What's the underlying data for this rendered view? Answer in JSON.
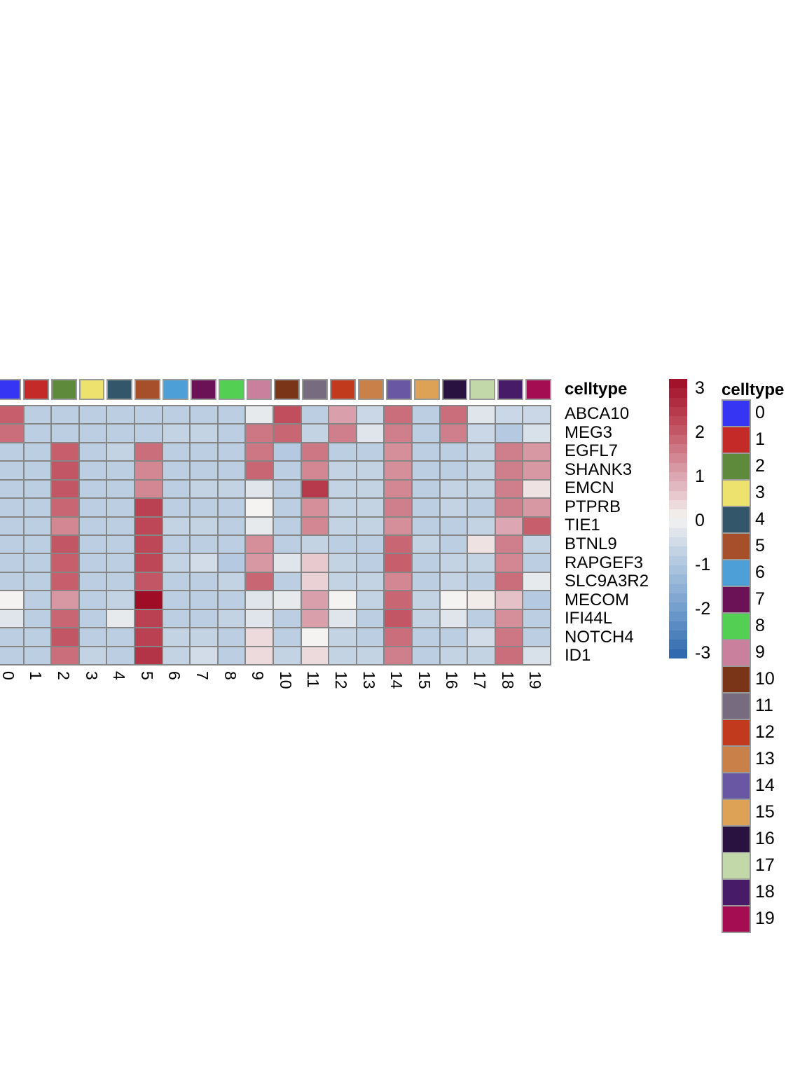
{
  "chart_data": {
    "type": "heatmap",
    "title": "",
    "genes": [
      "ABCA10",
      "MEG3",
      "EGFL7",
      "SHANK3",
      "EMCN",
      "PTPRB",
      "TIE1",
      "BTNL9",
      "RAPGEF3",
      "SLC9A3R2",
      "MECOM",
      "IFI44L",
      "NOTCH4",
      "ID1"
    ],
    "columns": [
      "0",
      "1",
      "2",
      "3",
      "4",
      "5",
      "6",
      "7",
      "8",
      "9",
      "10",
      "11",
      "12",
      "13",
      "14",
      "15",
      "16",
      "17",
      "18",
      "19"
    ],
    "values": [
      [
        1.8,
        -0.8,
        -0.8,
        -0.8,
        -0.8,
        -0.8,
        -0.8,
        -0.8,
        -0.8,
        -0.2,
        2.0,
        -0.8,
        1.0,
        -0.6,
        1.6,
        -0.8,
        1.6,
        -0.3,
        -0.6,
        -0.6
      ],
      [
        1.6,
        -0.8,
        -0.8,
        -0.8,
        -0.8,
        -0.8,
        -0.7,
        -0.7,
        -0.8,
        1.5,
        1.7,
        -0.7,
        1.4,
        -0.3,
        1.4,
        -0.8,
        1.4,
        -0.6,
        -0.9,
        -0.4
      ],
      [
        -0.8,
        -0.8,
        1.8,
        -0.8,
        -0.7,
        1.6,
        -0.8,
        -0.8,
        -0.8,
        1.5,
        -0.9,
        1.5,
        -0.8,
        -0.8,
        1.2,
        -0.8,
        -0.8,
        -0.7,
        1.4,
        1.1
      ],
      [
        -0.8,
        -0.8,
        1.9,
        -0.8,
        -0.8,
        1.3,
        -0.8,
        -0.8,
        -0.8,
        1.7,
        -0.8,
        1.3,
        -0.7,
        -0.7,
        1.2,
        -0.8,
        -0.8,
        -0.7,
        1.4,
        1.1
      ],
      [
        -0.8,
        -0.8,
        1.9,
        -0.8,
        -0.8,
        1.3,
        -0.8,
        -0.7,
        -0.7,
        -0.3,
        -0.8,
        2.3,
        -0.7,
        -0.7,
        1.3,
        -0.8,
        -0.7,
        -0.7,
        1.4,
        0.2
      ],
      [
        -0.8,
        -0.8,
        1.7,
        -0.8,
        -0.8,
        2.2,
        -0.8,
        -0.8,
        -0.8,
        0.0,
        -0.8,
        1.2,
        -0.7,
        -0.7,
        1.4,
        -0.8,
        -0.7,
        -0.8,
        1.4,
        1.1
      ],
      [
        -0.8,
        -0.8,
        1.3,
        -0.8,
        -0.8,
        2.1,
        -0.7,
        -0.7,
        -0.8,
        -0.2,
        -0.8,
        1.3,
        -0.7,
        -0.7,
        1.2,
        -0.8,
        -0.8,
        -0.7,
        0.9,
        1.8
      ],
      [
        -0.8,
        -0.8,
        1.9,
        -0.8,
        -0.8,
        2.1,
        -0.8,
        -0.8,
        -0.8,
        1.2,
        -0.8,
        -0.7,
        -0.8,
        -0.8,
        1.7,
        -0.7,
        -0.8,
        0.2,
        1.4,
        -0.7
      ],
      [
        -0.8,
        -0.8,
        1.8,
        -0.8,
        -0.8,
        2.1,
        -0.7,
        -0.5,
        -0.9,
        1.1,
        -0.3,
        0.5,
        -0.7,
        -0.8,
        1.8,
        -0.8,
        -0.7,
        -0.7,
        1.3,
        -0.8
      ],
      [
        -0.8,
        -0.8,
        1.8,
        -0.8,
        -0.8,
        1.9,
        -0.8,
        -0.8,
        -0.7,
        1.7,
        -0.8,
        0.4,
        -0.7,
        -0.7,
        1.3,
        -0.8,
        -0.7,
        -0.8,
        1.6,
        -0.2
      ],
      [
        0.0,
        -0.8,
        1.1,
        -0.8,
        -0.7,
        3.0,
        -0.8,
        -0.8,
        -0.8,
        -0.3,
        -0.2,
        1.0,
        0.0,
        -0.7,
        1.7,
        -0.7,
        0.0,
        0.1,
        0.6,
        -0.9
      ],
      [
        -0.3,
        -0.8,
        1.7,
        -0.8,
        -0.2,
        2.2,
        -0.8,
        -0.8,
        -0.7,
        -0.3,
        -0.8,
        1.0,
        -0.3,
        -0.8,
        1.9,
        -0.7,
        -0.3,
        -0.8,
        1.2,
        -0.8
      ],
      [
        -0.8,
        -0.8,
        1.9,
        -0.8,
        -0.8,
        2.2,
        -0.7,
        -0.7,
        -0.8,
        0.3,
        -0.8,
        0.0,
        -0.7,
        -0.8,
        1.6,
        -0.8,
        -0.8,
        -0.5,
        1.5,
        -0.8
      ],
      [
        -0.8,
        -0.8,
        1.6,
        -0.7,
        -0.8,
        2.4,
        -0.7,
        -0.5,
        -0.8,
        0.3,
        -0.7,
        0.3,
        -0.7,
        -0.7,
        1.4,
        -0.8,
        -0.7,
        -0.7,
        1.6,
        -0.4
      ]
    ],
    "color_scale": {
      "min": -3,
      "max": 3,
      "ticks": [
        "3",
        "2",
        "1",
        "0",
        "-1",
        "-2",
        "-3"
      ],
      "stops": [
        [
          -3,
          "#2a65ac"
        ],
        [
          -2,
          "#6f9ccb"
        ],
        [
          -1,
          "#aec5de"
        ],
        [
          0,
          "#f4f3f1"
        ],
        [
          1,
          "#d99fab"
        ],
        [
          2,
          "#c14e5c"
        ],
        [
          3,
          "#9e0c26"
        ]
      ]
    },
    "column_annotation": {
      "title": "celltype",
      "colors": [
        "#3535f3",
        "#c32a28",
        "#5d8b3b",
        "#ece26d",
        "#34566b",
        "#a74e2b",
        "#4d9fd7",
        "#6b1257",
        "#53cf53",
        "#c8809c",
        "#7a3418",
        "#776b80",
        "#c23a1e",
        "#c98049",
        "#6a57a4",
        "#dda256",
        "#2a1240",
        "#c3d8a8",
        "#471b68",
        "#a50d52"
      ]
    },
    "legend": {
      "title": "celltype",
      "entries": [
        "0",
        "1",
        "2",
        "3",
        "4",
        "5",
        "6",
        "7",
        "8",
        "9",
        "10",
        "11",
        "12",
        "13",
        "14",
        "15",
        "16",
        "17",
        "18",
        "19"
      ]
    },
    "layout": {
      "grid_line_color": "#868686",
      "legend_border_color": "#9a9a9a"
    }
  }
}
